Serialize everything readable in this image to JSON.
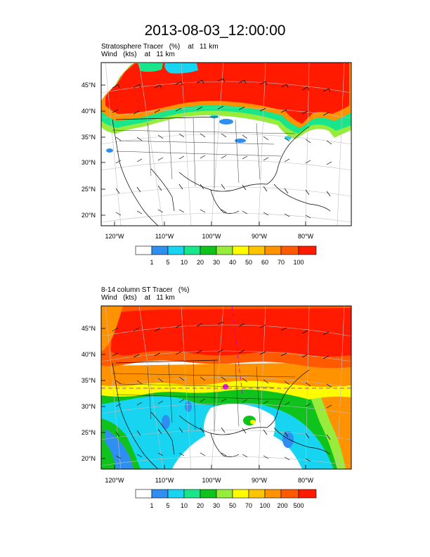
{
  "title": "2013-08-03_12:00:00",
  "panels": [
    {
      "label_line1": "Stratosphere Tracer   (%)    at   11 km",
      "label_line2": "Wind   (kts)    at   11 km",
      "lat_labels": [
        "45°N",
        "40°N",
        "35°N",
        "30°N",
        "25°N",
        "20°N"
      ],
      "lon_labels": [
        "120°W",
        "110°W",
        "100°W",
        "90°W",
        "80°W"
      ],
      "colorbar": {
        "levels": [
          "1",
          "5",
          "10",
          "20",
          "30",
          "40",
          "50",
          "60",
          "70",
          "100"
        ],
        "colors": [
          "#ffffff",
          "#2e8ff0",
          "#17d4f0",
          "#19e68a",
          "#10c21c",
          "#98ec3c",
          "#fffc00",
          "#ffc400",
          "#ff9200",
          "#ff5a00",
          "#ff1a00"
        ]
      }
    },
    {
      "label_line1": "8-14 column ST Tracer   (%)",
      "label_line2": "Wind   (kts)    at   11 km",
      "lat_labels": [
        "45°N",
        "40°N",
        "35°N",
        "30°N",
        "25°N",
        "20°N"
      ],
      "lon_labels": [
        "120°W",
        "110°W",
        "100°W",
        "90°W",
        "80°W"
      ],
      "colorbar": {
        "levels": [
          "1",
          "5",
          "10",
          "20",
          "30",
          "50",
          "70",
          "100",
          "200",
          "500"
        ],
        "colors": [
          "#ffffff",
          "#2e8ff0",
          "#17d4f0",
          "#19e68a",
          "#10c21c",
          "#98ec3c",
          "#fffc00",
          "#ffc400",
          "#ff9200",
          "#ff5a00",
          "#ff1a00"
        ]
      }
    }
  ]
}
